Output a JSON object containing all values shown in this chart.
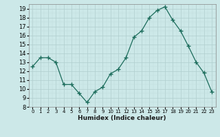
{
  "x": [
    0,
    1,
    2,
    3,
    4,
    5,
    6,
    7,
    8,
    9,
    10,
    11,
    12,
    13,
    14,
    15,
    16,
    17,
    18,
    19,
    20,
    21,
    22,
    23
  ],
  "y": [
    12.5,
    13.5,
    13.5,
    13.0,
    10.5,
    10.5,
    9.5,
    8.5,
    9.7,
    10.2,
    11.7,
    12.2,
    13.5,
    15.8,
    16.5,
    18.0,
    18.8,
    19.2,
    17.7,
    16.5,
    14.8,
    13.0,
    11.8,
    9.7
  ],
  "line_color": "#1a6b5a",
  "marker": "+",
  "marker_size": 4,
  "bg_color": "#cce8e8",
  "grid_color_major": "#b0cece",
  "grid_color_minor": "#c2dcdc",
  "xlabel": "Humidex (Indice chaleur)",
  "xlim": [
    -0.5,
    23.5
  ],
  "ylim": [
    8,
    19.5
  ],
  "yticks": [
    8,
    9,
    10,
    11,
    12,
    13,
    14,
    15,
    16,
    17,
    18,
    19
  ],
  "xticks": [
    0,
    1,
    2,
    3,
    4,
    5,
    6,
    7,
    8,
    9,
    10,
    11,
    12,
    13,
    14,
    15,
    16,
    17,
    18,
    19,
    20,
    21,
    22,
    23
  ]
}
